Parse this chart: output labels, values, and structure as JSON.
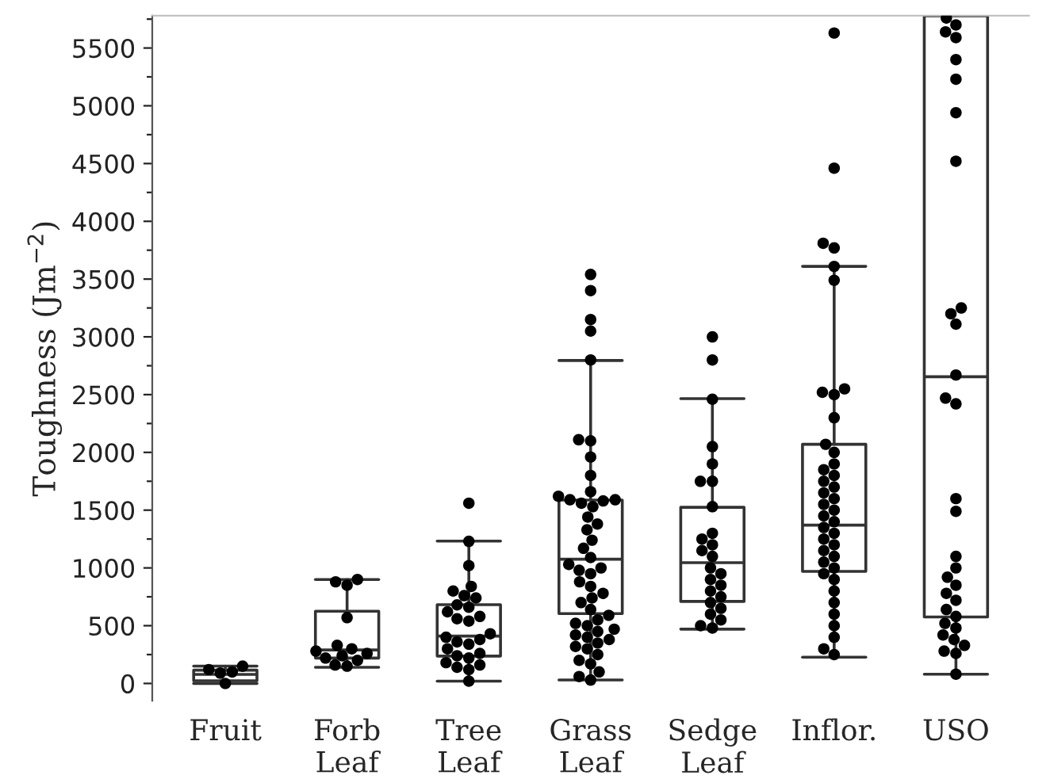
{
  "chart_data": {
    "type": "box",
    "ylabel": "Toughness (Jm$^{−2}$)",
    "categories": [
      "Fruit",
      "Forb\nLeaf",
      "Tree\nLeaf",
      "Grass\nLeaf",
      "Sedge\nLeaf",
      "Inflor.",
      "USO"
    ],
    "boxes": [
      {
        "low": 0,
        "q1": 23,
        "median": 78,
        "q3": 115,
        "high": 150
      },
      {
        "low": 140,
        "q1": 220,
        "median": 290,
        "q3": 625,
        "high": 900
      },
      {
        "low": 20,
        "q1": 237,
        "median": 410,
        "q3": 682,
        "high": 1232
      },
      {
        "low": 30,
        "q1": 605,
        "median": 1075,
        "q3": 1587,
        "high": 2795
      },
      {
        "low": 470,
        "q1": 710,
        "median": 1045,
        "q3": 1525,
        "high": 2465
      },
      {
        "low": 227,
        "q1": 970,
        "median": 1370,
        "q3": 2070,
        "high": 3610
      },
      {
        "low": 80,
        "q1": 575,
        "median": 2655,
        "q3": 5780,
        "high": 5780
      }
    ],
    "series": [
      {
        "type": "scatter",
        "color": "#000000",
        "x": [
          "Fruit",
          "Fruit",
          "Fruit",
          "Fruit",
          "Fruit"
        ],
        "values": [
          150,
          120,
          100,
          90,
          0
        ]
      },
      {
        "type": "scatter",
        "color": "#000000",
        "x": [
          "Forb\nLeaf",
          "Forb\nLeaf",
          "Forb\nLeaf",
          "Forb\nLeaf",
          "Forb\nLeaf",
          "Forb\nLeaf",
          "Forb\nLeaf",
          "Forb\nLeaf",
          "Forb\nLeaf",
          "Forb\nLeaf",
          "Forb\nLeaf",
          "Forb\nLeaf",
          "Forb\nLeaf"
        ],
        "values": [
          900,
          880,
          850,
          570,
          330,
          300,
          280,
          260,
          240,
          220,
          200,
          160,
          150
        ]
      },
      {
        "type": "scatter",
        "color": "#000000",
        "x": [
          "Tree\nLeaf",
          "Tree\nLeaf",
          "Tree\nLeaf",
          "Tree\nLeaf",
          "Tree\nLeaf",
          "Tree\nLeaf",
          "Tree\nLeaf",
          "Tree\nLeaf",
          "Tree\nLeaf",
          "Tree\nLeaf",
          "Tree\nLeaf",
          "Tree\nLeaf",
          "Tree\nLeaf",
          "Tree\nLeaf",
          "Tree\nLeaf",
          "Tree\nLeaf",
          "Tree\nLeaf",
          "Tree\nLeaf",
          "Tree\nLeaf",
          "Tree\nLeaf",
          "Tree\nLeaf",
          "Tree\nLeaf",
          "Tree\nLeaf",
          "Tree\nLeaf",
          "Tree\nLeaf",
          "Tree\nLeaf",
          "Tree\nLeaf"
        ],
        "values": [
          1560,
          1230,
          1020,
          840,
          800,
          760,
          740,
          680,
          660,
          620,
          580,
          560,
          540,
          430,
          400,
          380,
          360,
          340,
          300,
          260,
          240,
          220,
          180,
          160,
          140,
          120,
          20
        ]
      },
      {
        "type": "scatter",
        "color": "#000000",
        "x": [
          "Grass\nLeaf",
          "Grass\nLeaf",
          "Grass\nLeaf",
          "Grass\nLeaf",
          "Grass\nLeaf",
          "Grass\nLeaf",
          "Grass\nLeaf",
          "Grass\nLeaf",
          "Grass\nLeaf",
          "Grass\nLeaf",
          "Grass\nLeaf",
          "Grass\nLeaf",
          "Grass\nLeaf",
          "Grass\nLeaf",
          "Grass\nLeaf",
          "Grass\nLeaf",
          "Grass\nLeaf",
          "Grass\nLeaf",
          "Grass\nLeaf",
          "Grass\nLeaf",
          "Grass\nLeaf",
          "Grass\nLeaf",
          "Grass\nLeaf",
          "Grass\nLeaf",
          "Grass\nLeaf",
          "Grass\nLeaf",
          "Grass\nLeaf",
          "Grass\nLeaf",
          "Grass\nLeaf",
          "Grass\nLeaf",
          "Grass\nLeaf",
          "Grass\nLeaf",
          "Grass\nLeaf",
          "Grass\nLeaf",
          "Grass\nLeaf",
          "Grass\nLeaf",
          "Grass\nLeaf",
          "Grass\nLeaf",
          "Grass\nLeaf",
          "Grass\nLeaf",
          "Grass\nLeaf",
          "Grass\nLeaf",
          "Grass\nLeaf",
          "Grass\nLeaf",
          "Grass\nLeaf",
          "Grass\nLeaf",
          "Grass\nLeaf",
          "Grass\nLeaf",
          "Grass\nLeaf",
          "Grass\nLeaf"
        ],
        "values": [
          3540,
          3400,
          3150,
          3050,
          2800,
          2110,
          2100,
          1960,
          1800,
          1660,
          1620,
          1590,
          1590,
          1580,
          1560,
          1530,
          1440,
          1380,
          1330,
          1240,
          1170,
          1090,
          1030,
          1000,
          980,
          950,
          880,
          840,
          780,
          740,
          700,
          640,
          590,
          550,
          520,
          500,
          470,
          450,
          420,
          400,
          380,
          350,
          320,
          300,
          250,
          200,
          170,
          100,
          60,
          30
        ]
      },
      {
        "type": "scatter",
        "color": "#000000",
        "x": [
          "Sedge\nLeaf",
          "Sedge\nLeaf",
          "Sedge\nLeaf",
          "Sedge\nLeaf",
          "Sedge\nLeaf",
          "Sedge\nLeaf",
          "Sedge\nLeaf",
          "Sedge\nLeaf",
          "Sedge\nLeaf",
          "Sedge\nLeaf",
          "Sedge\nLeaf",
          "Sedge\nLeaf",
          "Sedge\nLeaf",
          "Sedge\nLeaf",
          "Sedge\nLeaf",
          "Sedge\nLeaf",
          "Sedge\nLeaf",
          "Sedge\nLeaf",
          "Sedge\nLeaf",
          "Sedge\nLeaf",
          "Sedge\nLeaf",
          "Sedge\nLeaf",
          "Sedge\nLeaf",
          "Sedge\nLeaf",
          "Sedge\nLeaf"
        ],
        "values": [
          3000,
          2800,
          2460,
          2050,
          1900,
          1750,
          1750,
          1530,
          1300,
          1250,
          1200,
          1150,
          1100,
          1000,
          950,
          900,
          850,
          800,
          750,
          700,
          650,
          600,
          550,
          500,
          480
        ]
      },
      {
        "type": "scatter",
        "color": "#000000",
        "x": [
          "Inflor.",
          "Inflor.",
          "Inflor.",
          "Inflor.",
          "Inflor.",
          "Inflor.",
          "Inflor.",
          "Inflor.",
          "Inflor.",
          "Inflor.",
          "Inflor.",
          "Inflor.",
          "Inflor.",
          "Inflor.",
          "Inflor.",
          "Inflor.",
          "Inflor.",
          "Inflor.",
          "Inflor.",
          "Inflor.",
          "Inflor.",
          "Inflor.",
          "Inflor.",
          "Inflor.",
          "Inflor.",
          "Inflor.",
          "Inflor.",
          "Inflor.",
          "Inflor.",
          "Inflor.",
          "Inflor.",
          "Inflor.",
          "Inflor.",
          "Inflor.",
          "Inflor.",
          "Inflor.",
          "Inflor.",
          "Inflor.",
          "Inflor.",
          "Inflor."
        ],
        "values": [
          5630,
          4460,
          3810,
          3770,
          3610,
          3490,
          2550,
          2520,
          2500,
          2300,
          2070,
          2000,
          1900,
          1850,
          1800,
          1750,
          1700,
          1650,
          1600,
          1550,
          1500,
          1450,
          1400,
          1350,
          1300,
          1250,
          1200,
          1150,
          1100,
          1050,
          1000,
          950,
          900,
          800,
          700,
          600,
          500,
          400,
          300,
          250
        ]
      },
      {
        "type": "scatter",
        "color": "#000000",
        "x": [
          "USO",
          "USO",
          "USO",
          "USO",
          "USO",
          "USO",
          "USO",
          "USO",
          "USO",
          "USO",
          "USO",
          "USO",
          "USO",
          "USO",
          "USO",
          "USO",
          "USO",
          "USO",
          "USO",
          "USO",
          "USO",
          "USO",
          "USO",
          "USO",
          "USO",
          "USO",
          "USO",
          "USO",
          "USO",
          "USO",
          "USO",
          "USO"
        ],
        "values": [
          5760,
          5700,
          5640,
          5590,
          5400,
          5230,
          4940,
          4520,
          3250,
          3200,
          3110,
          2670,
          2470,
          2420,
          1600,
          1490,
          1100,
          1000,
          920,
          850,
          780,
          720,
          640,
          580,
          520,
          480,
          420,
          380,
          330,
          280,
          260,
          80
        ]
      }
    ],
    "ylim": [
      -150,
      5780
    ],
    "yticks": [
      0,
      {
        "value": 250,
        "label": null
      },
      500,
      {
        "value": 750,
        "label": null
      },
      1000,
      {
        "value": 1250,
        "label": null
      },
      1500,
      {
        "value": 1750,
        "label": null
      },
      2000,
      {
        "value": 2250,
        "label": null
      },
      2500,
      {
        "value": 2750,
        "label": null
      },
      3000,
      {
        "value": 3250,
        "label": null
      },
      3500,
      {
        "value": 3750,
        "label": null
      },
      4000,
      {
        "value": 4250,
        "label": null
      },
      4500,
      {
        "value": 4750,
        "label": null
      },
      5000,
      {
        "value": 5250,
        "label": null
      },
      5500,
      {
        "value": 5750,
        "label": null
      }
    ],
    "grid": false,
    "legend": false
  }
}
